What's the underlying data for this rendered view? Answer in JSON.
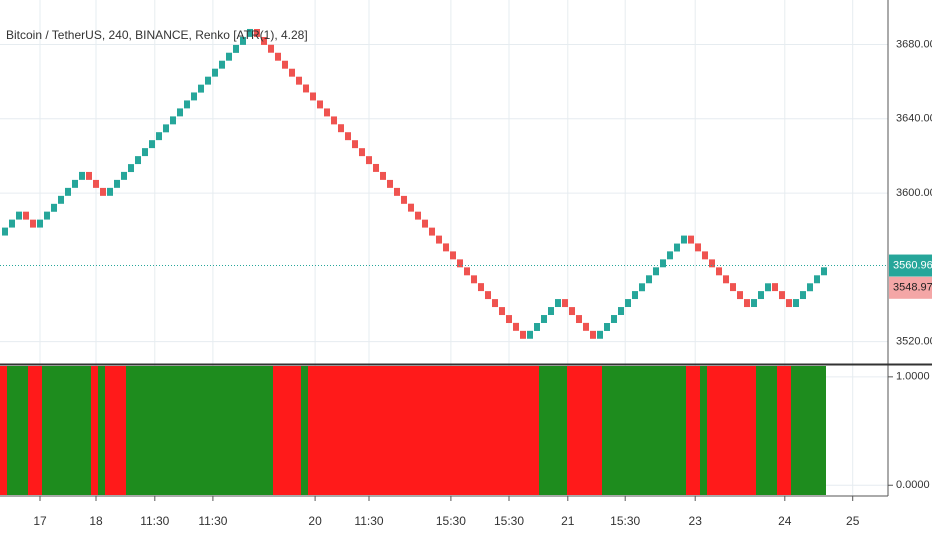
{
  "chart_data": [
    {
      "type": "renko",
      "title": "Bitcoin / TetherUS, 240, BINANCE, Renko [ATR(1), 4.28]",
      "brick_size": 4.28,
      "up_color": "#26a69a",
      "down_color": "#ef5350",
      "values": [
        3581.4,
        3585.7,
        3590.0,
        3585.7,
        3581.4,
        3585.7,
        3590.0,
        3594.2,
        3598.5,
        3602.8,
        3607.1,
        3611.4,
        3607.1,
        3602.8,
        3598.5,
        3602.8,
        3607.1,
        3611.4,
        3615.6,
        3619.9,
        3624.2,
        3628.5,
        3632.8,
        3637.0,
        3641.3,
        3645.6,
        3649.9,
        3654.2,
        3658.4,
        3662.7,
        3667.0,
        3671.3,
        3675.6,
        3679.8,
        3684.1,
        3688.4,
        3684.1,
        3679.8,
        3675.6,
        3671.3,
        3667.0,
        3662.7,
        3658.4,
        3654.2,
        3649.9,
        3645.6,
        3641.3,
        3637.0,
        3632.8,
        3628.5,
        3624.2,
        3619.9,
        3615.6,
        3611.4,
        3607.1,
        3602.8,
        3598.5,
        3594.2,
        3590.0,
        3585.7,
        3581.4,
        3577.1,
        3572.8,
        3568.6,
        3564.3,
        3560.0,
        3555.7,
        3551.4,
        3547.2,
        3542.9,
        3538.6,
        3534.3,
        3530.0,
        3525.8,
        3521.5,
        3525.8,
        3530.0,
        3534.3,
        3538.6,
        3542.9,
        3538.6,
        3534.3,
        3530.0,
        3525.8,
        3521.5,
        3525.8,
        3530.0,
        3534.3,
        3538.6,
        3542.9,
        3547.2,
        3551.4,
        3555.7,
        3560.0,
        3564.3,
        3568.6,
        3572.8,
        3577.1,
        3572.8,
        3568.6,
        3564.3,
        3560.0,
        3555.7,
        3551.4,
        3547.2,
        3542.9,
        3538.6,
        3542.9,
        3547.2,
        3551.4,
        3547.2,
        3542.9,
        3538.6,
        3542.9,
        3547.2,
        3551.4,
        3555.7,
        3560.0
      ],
      "ylim": [
        3509,
        3704
      ],
      "yticks": [
        {
          "value": 3680,
          "label": "3680.00"
        },
        {
          "value": 3640,
          "label": "3640.00"
        },
        {
          "value": 3600,
          "label": "3600.00"
        },
        {
          "value": 3520,
          "label": "3520.00"
        }
      ],
      "price_labels": [
        {
          "value": 3560.96,
          "color": "#26a69a"
        },
        {
          "value": 3548.97,
          "color": "#f4a6a6"
        }
      ],
      "xticks": [
        {
          "value": 5,
          "label": "17"
        },
        {
          "value": 13,
          "label": "18"
        },
        {
          "value": 21.4,
          "label": "11:30"
        },
        {
          "value": 29.7,
          "label": "11:30"
        },
        {
          "value": 44.3,
          "label": "20"
        },
        {
          "value": 52,
          "label": "11:30"
        },
        {
          "value": 63.7,
          "label": "15:30"
        },
        {
          "value": 72,
          "label": "15:30"
        },
        {
          "value": 80.4,
          "label": "21"
        },
        {
          "value": 88.6,
          "label": "15:30"
        },
        {
          "value": 98.6,
          "label": "23"
        },
        {
          "value": 111.4,
          "label": "24"
        },
        {
          "value": 121.1,
          "label": "25"
        }
      ],
      "grid": true
    },
    {
      "type": "state-bands",
      "segments": [
        {
          "bricks": 1,
          "color": "#ff1a1a"
        },
        {
          "bricks": 3,
          "color": "#1e8c1e"
        },
        {
          "bricks": 2,
          "color": "#ff1a1a"
        },
        {
          "bricks": 7,
          "color": "#1e8c1e"
        },
        {
          "bricks": 1,
          "color": "#ff1a1a"
        },
        {
          "bricks": 1,
          "color": "#1e8c1e"
        },
        {
          "bricks": 3,
          "color": "#ff1a1a"
        },
        {
          "bricks": 21,
          "color": "#1e8c1e"
        },
        {
          "bricks": 4,
          "color": "#ff1a1a"
        },
        {
          "bricks": 1,
          "color": "#1e8c1e"
        },
        {
          "bricks": 33,
          "color": "#ff1a1a"
        },
        {
          "bricks": 4,
          "color": "#1e8c1e"
        },
        {
          "bricks": 5,
          "color": "#ff1a1a"
        },
        {
          "bricks": 12,
          "color": "#1e8c1e"
        },
        {
          "bricks": 2,
          "color": "#ff1a1a"
        },
        {
          "bricks": 1,
          "color": "#1e8c1e"
        },
        {
          "bricks": 7,
          "color": "#ff1a1a"
        },
        {
          "bricks": 3,
          "color": "#1e8c1e"
        },
        {
          "bricks": 2,
          "color": "#ff1a1a"
        },
        {
          "bricks": 5,
          "color": "#1e8c1e"
        }
      ],
      "ylim": [
        -0.09,
        1.1
      ],
      "yticks": [
        {
          "value": 1,
          "label": "1.0000"
        },
        {
          "value": 0,
          "label": "0.0000"
        }
      ]
    }
  ]
}
